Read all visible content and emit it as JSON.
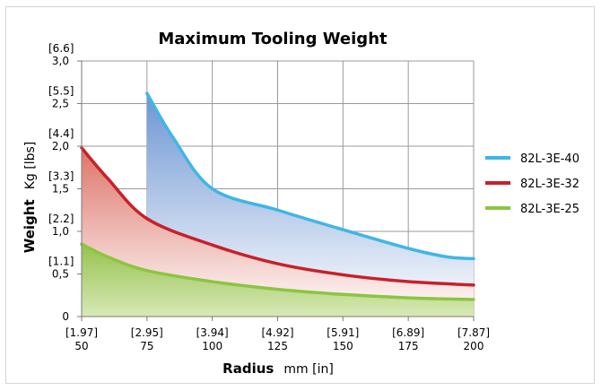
{
  "chart_data": {
    "type": "area",
    "title": "Maximum Tooling Weight",
    "xlabel": {
      "bold": "Radius",
      "normal": "mm [in]"
    },
    "ylabel": {
      "bold": "Weight",
      "normal": "Kg [lbs]"
    },
    "xlim": [
      50,
      200
    ],
    "ylim": [
      0,
      3.0
    ],
    "x_ticks": [
      {
        "value": 50,
        "mm": "50",
        "in": "[1.97]"
      },
      {
        "value": 75,
        "mm": "75",
        "in": "[2.95]"
      },
      {
        "value": 100,
        "mm": "100",
        "in": "[3.94]"
      },
      {
        "value": 125,
        "mm": "125",
        "in": "[4.92]"
      },
      {
        "value": 150,
        "mm": "150",
        "in": "[5.91]"
      },
      {
        "value": 175,
        "mm": "175",
        "in": "[6.89]"
      },
      {
        "value": 200,
        "mm": "200",
        "in": "[7.87]"
      }
    ],
    "y_ticks": [
      {
        "value": 0,
        "kg": "0",
        "lbs": ""
      },
      {
        "value": 0.5,
        "kg": "0,5",
        "lbs": "[1.1]"
      },
      {
        "value": 1.0,
        "kg": "1,0",
        "lbs": "[2.2]"
      },
      {
        "value": 1.5,
        "kg": "1,5",
        "lbs": "[3.3]"
      },
      {
        "value": 2.0,
        "kg": "2,0",
        "lbs": "[4.4]"
      },
      {
        "value": 2.5,
        "kg": "2,5",
        "lbs": "[5.5]"
      },
      {
        "value": 3.0,
        "kg": "3,0",
        "lbs": "[6.6]"
      }
    ],
    "grid": true,
    "legend_position": "right",
    "series": [
      {
        "name": "82L-3E-40",
        "color": "#3fb6e6",
        "fill_top": "#6d95d3",
        "fill_bottom": "#ffffff",
        "x": [
          75,
          85,
          100,
          125,
          150,
          175,
          190,
          200
        ],
        "y": [
          2.62,
          2.1,
          1.5,
          1.25,
          1.02,
          0.8,
          0.7,
          0.68
        ]
      },
      {
        "name": "82L-3E-32",
        "color": "#c8202a",
        "fill_top": "#dd7468",
        "fill_bottom": "#ffffff",
        "x": [
          50,
          60,
          75,
          100,
          125,
          150,
          175,
          200
        ],
        "y": [
          1.98,
          1.62,
          1.15,
          0.84,
          0.62,
          0.49,
          0.41,
          0.37
        ]
      },
      {
        "name": "82L-3E-25",
        "color": "#8cc540",
        "fill_top": "#95c24e",
        "fill_bottom": "#d7e9b6",
        "x": [
          50,
          60,
          75,
          100,
          125,
          150,
          175,
          200
        ],
        "y": [
          0.85,
          0.7,
          0.54,
          0.41,
          0.32,
          0.26,
          0.22,
          0.2
        ]
      }
    ]
  }
}
